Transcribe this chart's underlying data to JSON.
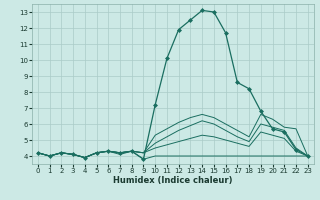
{
  "xlabel": "Humidex (Indice chaleur)",
  "bg_color": "#cce9e5",
  "grid_color": "#aaccc8",
  "line_color": "#1a6e60",
  "xlim": [
    -0.5,
    23.5
  ],
  "ylim": [
    3.5,
    13.5
  ],
  "xticks": [
    0,
    1,
    2,
    3,
    4,
    5,
    6,
    7,
    8,
    9,
    10,
    11,
    12,
    13,
    14,
    15,
    16,
    17,
    18,
    19,
    20,
    21,
    22,
    23
  ],
  "yticks": [
    4,
    5,
    6,
    7,
    8,
    9,
    10,
    11,
    12,
    13
  ],
  "s1_x": [
    0,
    1,
    2,
    3,
    4,
    5,
    6,
    7,
    8,
    9,
    10,
    11,
    12,
    13,
    14,
    15,
    16,
    17,
    18,
    19,
    20,
    21,
    22,
    23
  ],
  "s1_y": [
    4.2,
    4.0,
    4.2,
    4.1,
    3.9,
    4.2,
    4.3,
    4.1,
    4.3,
    3.8,
    4.0,
    4.0,
    4.0,
    4.0,
    4.0,
    4.0,
    4.0,
    4.0,
    4.0,
    4.0,
    4.0,
    4.0,
    4.0,
    4.0
  ],
  "s2_x": [
    0,
    1,
    2,
    3,
    4,
    5,
    6,
    7,
    8,
    9,
    10,
    11,
    12,
    13,
    14,
    15,
    16,
    17,
    18,
    19,
    20,
    21,
    22,
    23
  ],
  "s2_y": [
    4.2,
    4.0,
    4.2,
    4.1,
    3.9,
    4.2,
    4.3,
    4.2,
    4.3,
    4.2,
    4.5,
    4.7,
    4.9,
    5.1,
    5.3,
    5.2,
    5.0,
    4.8,
    4.6,
    5.5,
    5.3,
    5.1,
    4.3,
    4.0
  ],
  "s3_x": [
    0,
    1,
    2,
    3,
    4,
    5,
    6,
    7,
    8,
    9,
    10,
    11,
    12,
    13,
    14,
    15,
    16,
    17,
    18,
    19,
    20,
    21,
    22,
    23
  ],
  "s3_y": [
    4.2,
    4.0,
    4.2,
    4.1,
    3.9,
    4.2,
    4.3,
    4.2,
    4.3,
    4.2,
    4.8,
    5.2,
    5.6,
    5.9,
    6.2,
    6.0,
    5.6,
    5.2,
    4.9,
    6.0,
    5.8,
    5.6,
    4.5,
    4.0
  ],
  "s4_x": [
    0,
    1,
    2,
    3,
    4,
    5,
    6,
    7,
    8,
    9,
    10,
    11,
    12,
    13,
    14,
    15,
    16,
    17,
    18,
    19,
    20,
    21,
    22,
    23
  ],
  "s4_y": [
    4.2,
    4.0,
    4.2,
    4.1,
    3.9,
    4.2,
    4.3,
    4.2,
    4.3,
    4.2,
    5.3,
    5.7,
    6.1,
    6.4,
    6.6,
    6.4,
    6.0,
    5.6,
    5.2,
    6.6,
    6.3,
    5.8,
    5.7,
    4.0
  ],
  "smain_x": [
    0,
    1,
    2,
    3,
    4,
    5,
    6,
    7,
    8,
    9,
    10,
    11,
    12,
    13,
    14,
    15,
    16,
    17,
    18,
    19,
    20,
    21,
    22,
    23
  ],
  "smain_y": [
    4.2,
    4.0,
    4.2,
    4.1,
    3.9,
    4.2,
    4.3,
    4.2,
    4.3,
    3.8,
    7.2,
    10.1,
    11.9,
    12.5,
    13.1,
    13.0,
    11.7,
    8.6,
    8.2,
    6.8,
    5.7,
    5.5,
    4.4,
    4.0
  ]
}
